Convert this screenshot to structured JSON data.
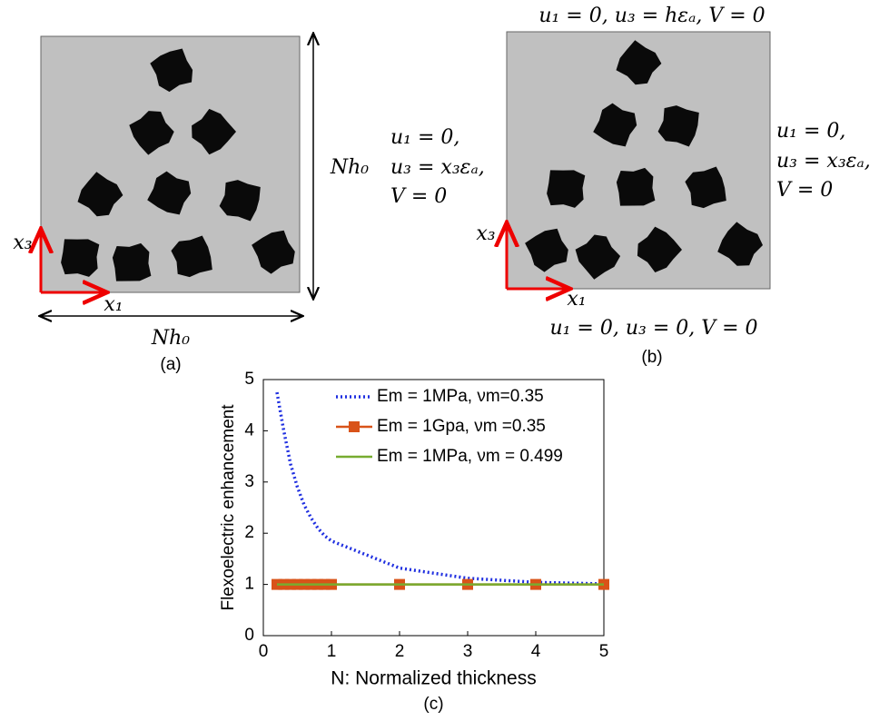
{
  "panel_a": {
    "dimension_vertical": "Nh₀",
    "dimension_horizontal": "Nh₀",
    "axis_x": "x₁",
    "axis_y": "x₃",
    "caption": "(a)"
  },
  "panel_b": {
    "top": "u₁ = 0, u₃ = hεₐ, V = 0",
    "left": [
      "u₁ = 0,",
      "u₃ = x₃εₐ,",
      "V = 0"
    ],
    "right": [
      "u₁ = 0,",
      "u₃ = x₃εₐ,",
      "V = 0"
    ],
    "bottom": "u₁ = 0, u₃ = 0, V = 0",
    "axis_x": "x₁",
    "axis_y": "x₃",
    "caption": "(b)"
  },
  "chart_data": {
    "type": "line",
    "xlabel": "N: Normalized thickness",
    "ylabel": "Flexoelectric enhancement",
    "caption": "(c)",
    "x": [
      0.2,
      0.3,
      0.4,
      0.5,
      0.6,
      0.7,
      0.8,
      0.9,
      1,
      2,
      3,
      4,
      5
    ],
    "xlim": [
      0,
      5
    ],
    "ylim": [
      0,
      5
    ],
    "xticks": [
      0,
      1,
      2,
      3,
      4,
      5
    ],
    "yticks": [
      0,
      1,
      2,
      3,
      4,
      5
    ],
    "legend": "upper right",
    "series": [
      {
        "name": "Em = 1MPa, νm=0.35",
        "color": "#1f2fe0",
        "style": "dotted",
        "values": [
          4.75,
          4.0,
          3.35,
          2.9,
          2.55,
          2.3,
          2.1,
          1.95,
          1.85,
          1.32,
          1.12,
          1.04,
          1.01
        ]
      },
      {
        "name": "Em = 1Gpa, νm =0.35",
        "color": "#d95319",
        "style": "square",
        "values": [
          1,
          1,
          1,
          1,
          1,
          1,
          1,
          1,
          1,
          1,
          1,
          1,
          1
        ]
      },
      {
        "name": "Em = 1MPa, νm = 0.499",
        "color": "#77ac30",
        "style": "solid",
        "values": [
          1,
          1,
          1,
          1,
          1,
          1,
          1,
          1,
          1,
          1,
          1,
          1,
          1
        ]
      }
    ]
  }
}
